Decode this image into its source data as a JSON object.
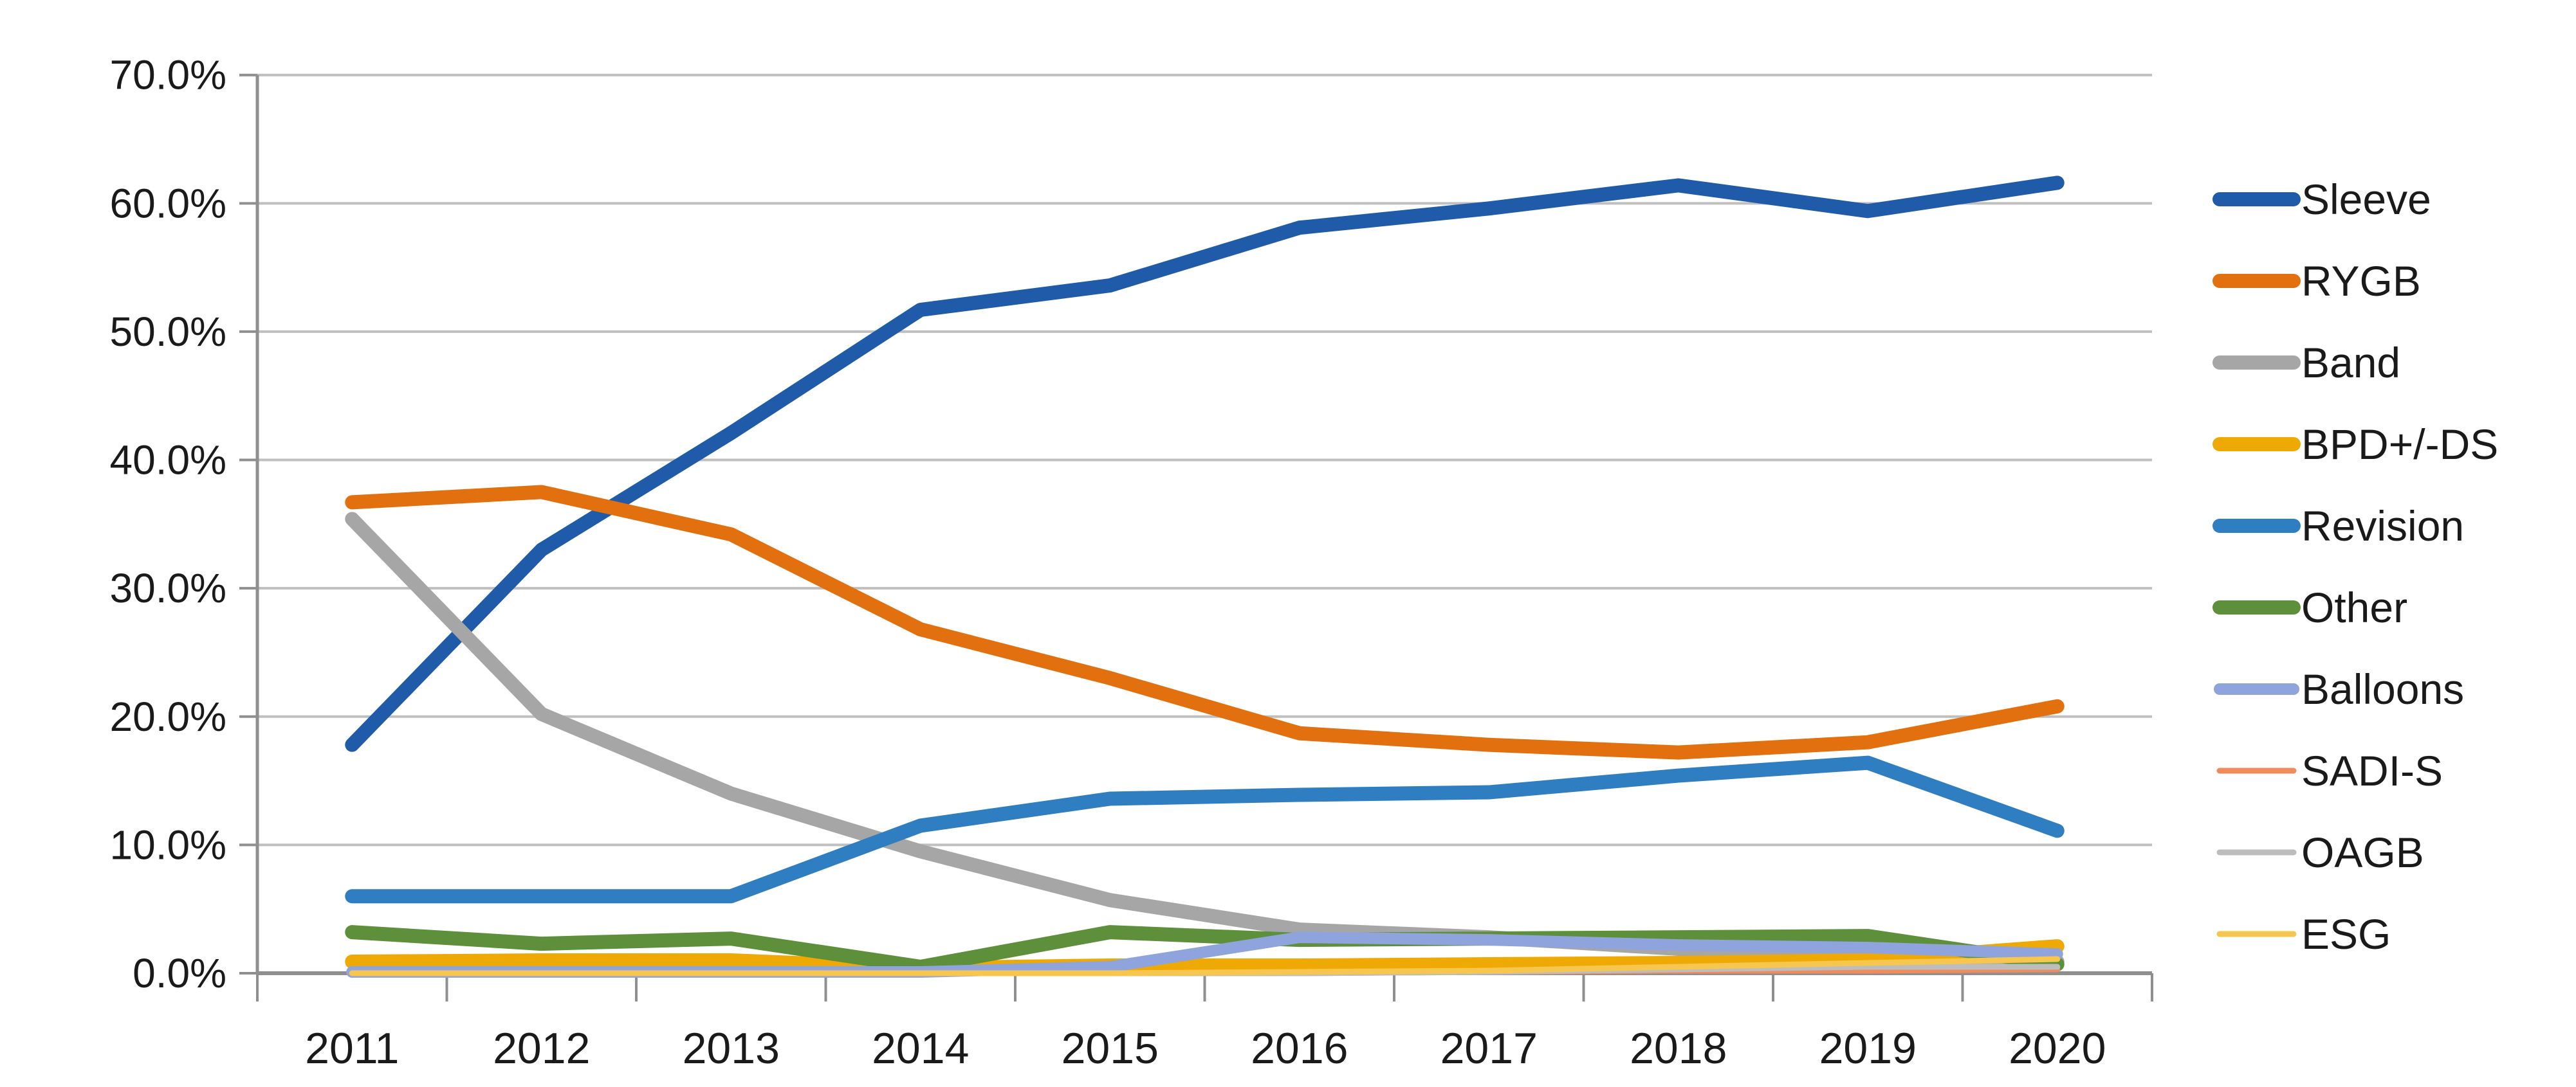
{
  "chart_data": {
    "type": "line",
    "title": "",
    "xlabel": "",
    "ylabel": "",
    "categories": [
      "2011",
      "2012",
      "2013",
      "2014",
      "2015",
      "2016",
      "2017",
      "2018",
      "2019",
      "2020"
    ],
    "y_axis": {
      "min": 0,
      "max": 70,
      "step": 10,
      "tick_labels": [
        "0.0%",
        "10.0%",
        "20.0%",
        "30.0%",
        "40.0%",
        "50.0%",
        "60.0%",
        "70.0%"
      ]
    },
    "grid": true,
    "legend_position": "right",
    "series": [
      {
        "name": "Sleeve",
        "color": "#1F5BA9",
        "thickness": "thick",
        "values": [
          17.8,
          33.0,
          42.1,
          51.7,
          53.6,
          58.1,
          59.6,
          61.4,
          59.4,
          61.6
        ]
      },
      {
        "name": "RYGB",
        "color": "#E2700E",
        "thickness": "thick",
        "values": [
          36.7,
          37.5,
          34.2,
          26.8,
          23.0,
          18.7,
          17.8,
          17.2,
          18.0,
          20.8
        ]
      },
      {
        "name": "Band",
        "color": "#A6A6A6",
        "thickness": "thick",
        "values": [
          35.4,
          20.2,
          14.0,
          9.5,
          5.7,
          3.4,
          2.8,
          1.9,
          1.3,
          0.9
        ]
      },
      {
        "name": "BPD+/-DS",
        "color": "#EEA904",
        "thickness": "thick",
        "values": [
          0.9,
          1.0,
          1.0,
          0.4,
          0.6,
          0.6,
          0.7,
          0.8,
          1.0,
          2.1
        ]
      },
      {
        "name": "Revision",
        "color": "#2E7EC1",
        "thickness": "thick",
        "values": [
          6.0,
          6.0,
          6.0,
          11.5,
          13.6,
          13.9,
          14.1,
          15.4,
          16.4,
          11.1
        ]
      },
      {
        "name": "Other",
        "color": "#5E8F3A",
        "thickness": "thick",
        "values": [
          3.2,
          2.3,
          2.7,
          0.5,
          3.2,
          2.6,
          2.7,
          2.8,
          2.9,
          0.7
        ]
      },
      {
        "name": "Balloons",
        "color": "#8FA3DC",
        "thickness": "medium",
        "values": [
          0.1,
          0.1,
          0.1,
          0.1,
          0.5,
          2.8,
          2.6,
          2.2,
          2.0,
          1.5
        ]
      },
      {
        "name": "SADI-S",
        "color": "#F08B5C",
        "thickness": "thin",
        "values": [
          0.0,
          0.0,
          0.0,
          0.0,
          0.0,
          0.0,
          0.1,
          0.2,
          0.2,
          0.3
        ]
      },
      {
        "name": "OAGB",
        "color": "#BDBDBD",
        "thickness": "thin",
        "values": [
          0.0,
          0.0,
          0.0,
          0.0,
          0.0,
          0.0,
          0.1,
          0.3,
          0.5,
          0.5
        ]
      },
      {
        "name": "ESG",
        "color": "#F6C64E",
        "thickness": "thin",
        "values": [
          0.0,
          0.0,
          0.0,
          0.0,
          0.0,
          0.1,
          0.2,
          0.5,
          0.8,
          1.1
        ]
      }
    ],
    "colors": {
      "gridline": "#BFBFBF",
      "axis": "#8F8F8F",
      "tick": "#8F8F8F",
      "text": "#1A1A1A",
      "background": "#FFFFFF"
    }
  }
}
